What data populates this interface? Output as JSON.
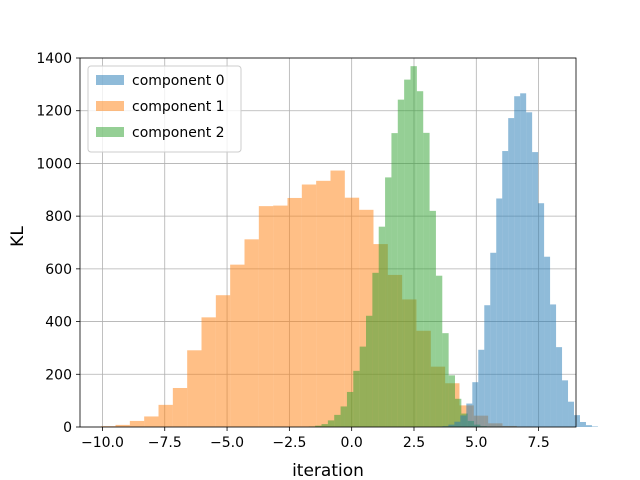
{
  "chart_data": {
    "type": "histogram",
    "title": "",
    "xlabel": "iteration",
    "ylabel": "KL",
    "xlim": [
      -10.9,
      9.0
    ],
    "ylim": [
      0,
      1400
    ],
    "xticks": [
      -10.0,
      -7.5,
      -5.0,
      -2.5,
      0.0,
      2.5,
      5.0,
      7.5
    ],
    "xtick_labels": [
      "−10.0",
      "−7.5",
      "−5.0",
      "−2.5",
      "0.0",
      "2.5",
      "5.0",
      "7.5"
    ],
    "yticks": [
      0,
      200,
      400,
      600,
      800,
      1000,
      1200,
      1400
    ],
    "ytick_labels": [
      "0",
      "200",
      "400",
      "600",
      "800",
      "1000",
      "1200",
      "1400"
    ],
    "grid": true,
    "legend_position": "top-left",
    "alpha": 0.5,
    "series": [
      {
        "name": "component 1",
        "color": "#ff7f0e",
        "bin_start": -10.05,
        "bin_width": 0.575,
        "counts": [
          3,
          8,
          23,
          40,
          84,
          148,
          291,
          416,
          500,
          616,
          712,
          838,
          840,
          869,
          920,
          934,
          973,
          870,
          824,
          694,
          577,
          484,
          365,
          229,
          166,
          82,
          43,
          14,
          4,
          1
        ]
      },
      {
        "name": "component 2",
        "color": "#2ca02c",
        "bin_start": -1.72,
        "bin_width": 0.255,
        "counts": [
          2,
          5,
          11,
          25,
          46,
          78,
          133,
          213,
          305,
          422,
          585,
          760,
          947,
          1115,
          1242,
          1318,
          1369,
          1274,
          1116,
          820,
          574,
          356,
          196,
          107,
          51,
          23,
          9,
          3,
          1,
          0
        ]
      },
      {
        "name": "component 0",
        "color": "#1f77b4",
        "bin_start": 3.4,
        "bin_width": 0.24,
        "counts": [
          1,
          3,
          9,
          20,
          44,
          89,
          170,
          293,
          462,
          661,
          867,
          1047,
          1172,
          1255,
          1266,
          1194,
          1043,
          849,
          646,
          465,
          303,
          177,
          96,
          45,
          19,
          7,
          2
        ]
      }
    ],
    "legend_order": [
      "component 0",
      "component 1",
      "component 2"
    ]
  }
}
